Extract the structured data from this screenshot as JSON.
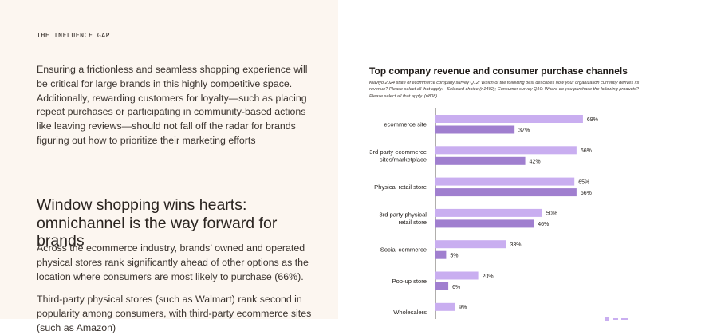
{
  "left": {
    "eyebrow": "THE INFLUENCE GAP",
    "intro": "Ensuring a frictionless and seamless shopping experience will be critical for large brands in this highly competitive space. Additionally, rewarding customers for loyalty—such as placing repeat purchases or participating in community-based actions like leaving reviews—should not fall off the radar for brands figuring out how to prioritize their marketing efforts",
    "section_title": "Window shopping wins hearts: omnichannel is the way forward for brands",
    "paragraph_2": "Across the ecommerce industry, brands’ owned and operated physical stores rank significantly ahead of other options as the location where consumers are most likely to purchase (66%).",
    "paragraph_3": "Third-party physical stores (such as Walmart) rank second in popularity among consumers, with third-party ecommerce sites (such as Amazon)"
  },
  "colors": {
    "left_bg": "#fcf6f0",
    "company_bar": "#c9aef0",
    "consumer_bar": "#a07fcf",
    "axis": "#3a332e"
  },
  "chart_data": {
    "type": "bar",
    "orientation": "horizontal",
    "title": "Top company revenue and consumer purchase channels",
    "subtitle": "Klaviyo 2024 state of ecommerce company survey Q12: Which of the following best describes how your organization currently derives its revenue? Please select all that apply. - Selected choice (n1402); Consumer survey Q10: Where do you purchase the following products? Please select all that apply. (n808)",
    "categories": [
      "ecommerce site",
      "3rd party ecommerce sites/marketplace",
      "Physical retail store",
      "3rd party physical retail store",
      "Social commerce",
      "Pop-up store",
      "Wholesalers"
    ],
    "series": [
      {
        "values": [
          69,
          66,
          65,
          50,
          33,
          20,
          9
        ]
      },
      {
        "values": [
          37,
          42,
          66,
          46,
          5,
          6,
          null
        ]
      }
    ],
    "value_suffix": "%",
    "xlim": [
      0,
      100
    ],
    "grid": false
  }
}
